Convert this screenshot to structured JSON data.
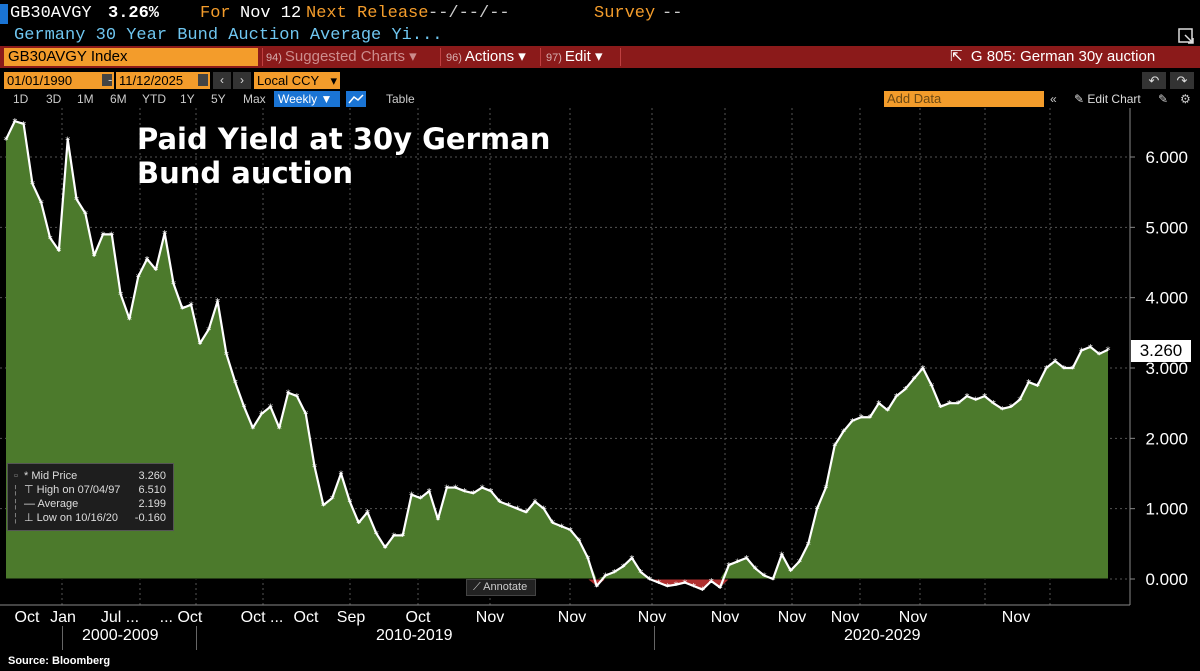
{
  "header": {
    "ticker": "GB30AVGY",
    "last_value": "3.26%",
    "for_label": "For",
    "for_value": "Nov 12",
    "next_release_label": "Next Release",
    "next_release_value": "--/--/--",
    "survey_label": "Survey",
    "survey_value": "--",
    "description": "Germany 30 Year Bund Auction Average Yi..."
  },
  "toolbar": {
    "security": "GB30AVGY Index",
    "suggested_num": "94)",
    "suggested_label": "Suggested Charts",
    "actions_num": "96)",
    "actions_label": "Actions",
    "edit_num": "97)",
    "edit_label": "Edit",
    "chart_title": "G 805: German 30y auction"
  },
  "dates": {
    "start": "01/01/1990",
    "dash": "-",
    "end": "11/12/2025",
    "currency": "Local CCY"
  },
  "periods": {
    "items": [
      "1D",
      "3D",
      "1M",
      "6M",
      "YTD",
      "1Y",
      "5Y",
      "Max"
    ],
    "frequency": "Weekly",
    "table": "Table",
    "add_data_placeholder": "Add Data",
    "edit_chart": "Edit Chart"
  },
  "icons": {
    "popout": "popout-icon",
    "calendar": "calendar-icon",
    "undo": "undo-icon",
    "redo": "redo-icon",
    "settings": "gear-icon"
  },
  "colors": {
    "area_fill": "#4c7a2c",
    "line": "#ffffff",
    "negative_fill": "#b03030",
    "accent_orange": "#f39c2b",
    "toolbar_red": "#8b1a1a",
    "blue": "#1a74d4"
  },
  "legend": {
    "rows": [
      {
        "label": "Mid Price",
        "value": "3.260"
      },
      {
        "label": "High on 07/04/97",
        "value": "6.510"
      },
      {
        "label": "Average",
        "value": "2.199"
      },
      {
        "label": "Low on 10/16/20",
        "value": "-0.160"
      }
    ]
  },
  "annotate_label": "Annotate",
  "last_badge": "3.260",
  "source": "Source: Bloomberg",
  "chart_data": {
    "type": "area",
    "title": "Paid Yield at 30y German Bund auction",
    "ylabel": "",
    "ylim": [
      -0.35,
      6.7
    ],
    "yticks": [
      0,
      1,
      2,
      3,
      4,
      5,
      6
    ],
    "ytick_labels": [
      "0.000",
      "1.000",
      "2.000",
      "3.000",
      "4.000",
      "5.000",
      "6.000"
    ],
    "xtick_labels": [
      "Oct",
      "Jan",
      "Jul ...",
      "... Oct",
      "Oct ...",
      "Oct",
      "Sep",
      "Oct",
      "Nov",
      "Nov",
      "Nov",
      "Nov",
      "Nov",
      "Nov",
      "Nov",
      "Nov"
    ],
    "decades": [
      "2000-2009",
      "2010-2019",
      "2020-2029"
    ],
    "series": [
      {
        "name": "GB30AVGY Index",
        "values": [
          6.25,
          6.51,
          6.47,
          5.62,
          5.35,
          4.85,
          4.67,
          6.25,
          5.4,
          5.2,
          4.6,
          4.9,
          4.9,
          4.05,
          3.7,
          4.3,
          4.55,
          4.4,
          4.92,
          4.2,
          3.85,
          3.9,
          3.35,
          3.55,
          3.95,
          3.2,
          2.8,
          2.45,
          2.15,
          2.35,
          2.45,
          2.15,
          2.65,
          2.6,
          2.35,
          1.6,
          1.05,
          1.15,
          1.5,
          1.1,
          0.8,
          0.95,
          0.65,
          0.45,
          0.62,
          0.62,
          1.2,
          1.15,
          1.25,
          0.85,
          1.3,
          1.3,
          1.25,
          1.22,
          1.3,
          1.25,
          1.1,
          1.05,
          1.0,
          0.95,
          1.1,
          1.0,
          0.8,
          0.75,
          0.7,
          0.55,
          0.3,
          -0.1,
          0.05,
          0.1,
          0.18,
          0.3,
          0.1,
          0.0,
          -0.05,
          -0.1,
          -0.08,
          -0.05,
          -0.1,
          -0.15,
          -0.03,
          -0.12,
          0.2,
          0.25,
          0.3,
          0.15,
          0.05,
          0.0,
          0.35,
          0.12,
          0.25,
          0.5,
          1.0,
          1.3,
          1.9,
          2.1,
          2.25,
          2.3,
          2.3,
          2.5,
          2.4,
          2.6,
          2.7,
          2.85,
          3.0,
          2.75,
          2.45,
          2.5,
          2.5,
          2.6,
          2.55,
          2.6,
          2.5,
          2.42,
          2.45,
          2.55,
          2.8,
          2.75,
          3.0,
          3.1,
          3.0,
          3.0,
          3.25,
          3.3,
          3.2,
          3.26
        ]
      }
    ]
  }
}
